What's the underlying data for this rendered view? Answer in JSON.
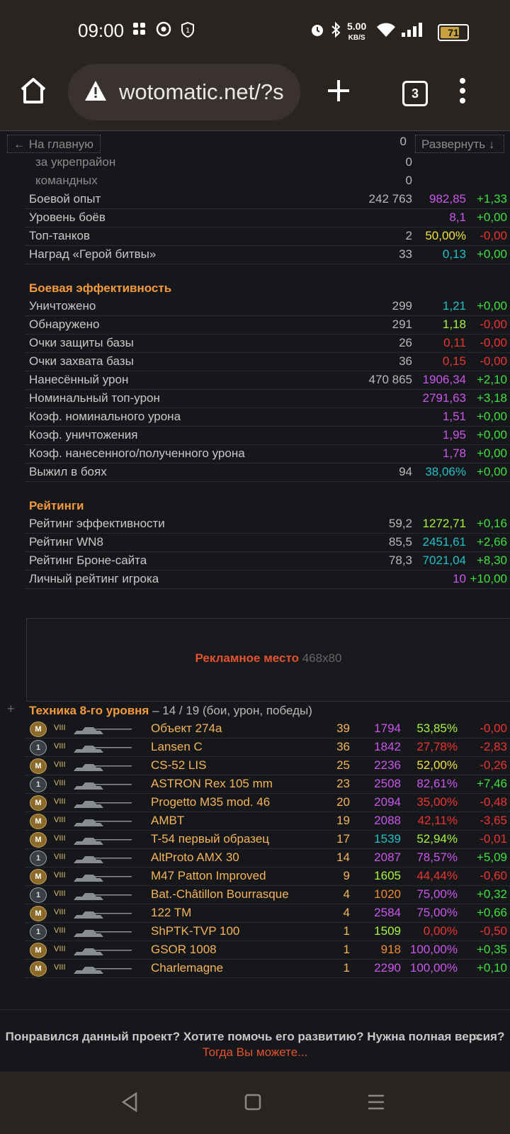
{
  "status_bar": {
    "time": "09:00",
    "net_speed": "5.00",
    "net_unit": "KB/S",
    "battery": "71"
  },
  "browser": {
    "url": "wotomatic.net/?s",
    "tab_count": "3"
  },
  "nav": {
    "home_link": "← На главную",
    "expand": "Развернуть ↓",
    "home_link_value": "0"
  },
  "colors": {
    "orange": "#f59a3c",
    "green": "#3fe03f",
    "red": "#ee3333",
    "purple": "#cc55ee",
    "teal": "#22c0c8",
    "yellow": "#f0e040",
    "lime": "#a8f040",
    "gold": "#f5b45a",
    "dark_orange": "#f08a30"
  },
  "top_rows": [
    {
      "label": "за укрепрайон",
      "v1": "0",
      "v2": "",
      "v3": "",
      "c2": "",
      "c3": "",
      "indent": true
    },
    {
      "label": "командных",
      "v1": "0",
      "v2": "",
      "v3": "",
      "c2": "",
      "c3": "",
      "indent": true
    },
    {
      "label": "Боевой опыт",
      "v1": "242 763",
      "v2": "982,85",
      "v3": "+1,33",
      "c2": "purple",
      "c3": "green"
    },
    {
      "label": "Уровень боёв",
      "v1": "",
      "v2": "8,1",
      "v3": "+0,00",
      "c2": "purple",
      "c3": "green"
    },
    {
      "label": "Топ-танков",
      "v1": "2",
      "v2": "50,00%",
      "v3": "-0,00",
      "c2": "yellow",
      "c3": "red"
    },
    {
      "label": "Наград «Герой битвы»",
      "v1": "33",
      "v2": "0,13",
      "v3": "+0,00",
      "c2": "teal",
      "c3": "green"
    }
  ],
  "section_combat": "Боевая эффективность",
  "combat_rows": [
    {
      "label": "Уничтожено",
      "v1": "299",
      "v2": "1,21",
      "v3": "+0,00",
      "c2": "teal",
      "c3": "green"
    },
    {
      "label": "Обнаружено",
      "v1": "291",
      "v2": "1,18",
      "v3": "-0,00",
      "c2": "lime",
      "c3": "red"
    },
    {
      "label": "Очки защиты базы",
      "v1": "26",
      "v2": "0,11",
      "v3": "-0,00",
      "c2": "red",
      "c3": "red"
    },
    {
      "label": "Очки захвата базы",
      "v1": "36",
      "v2": "0,15",
      "v3": "-0,00",
      "c2": "red",
      "c3": "red"
    },
    {
      "label": "Нанесённый урон",
      "v1": "470 865",
      "v2": "1906,34",
      "v3": "+2,10",
      "c2": "purple",
      "c3": "green"
    },
    {
      "label": "Номинальный топ-урон",
      "v1": "",
      "v2": "2791,63",
      "v3": "+3,18",
      "c2": "purple",
      "c3": "green"
    },
    {
      "label": "Коэф. номинального урона",
      "v1": "",
      "v2": "1,51",
      "v3": "+0,00",
      "c2": "purple",
      "c3": "green"
    },
    {
      "label": "Коэф. уничтожения",
      "v1": "",
      "v2": "1,95",
      "v3": "+0,00",
      "c2": "purple",
      "c3": "green"
    },
    {
      "label": "Коэф. нанесенного/полученного урона",
      "v1": "",
      "v2": "1,78",
      "v3": "+0,00",
      "c2": "purple",
      "c3": "green"
    },
    {
      "label": "Выжил в боях",
      "v1": "94",
      "v2": "38,06%",
      "v3": "+0,00",
      "c2": "teal",
      "c3": "green"
    }
  ],
  "section_ratings": "Рейтинги",
  "rating_rows": [
    {
      "label": "Рейтинг эффективности",
      "v1": "59,2",
      "v2": "1272,71",
      "v3": "+0,16",
      "c2": "lime",
      "c3": "green"
    },
    {
      "label": "Рейтинг WN8",
      "v1": "85,5",
      "v2": "2451,61",
      "v3": "+2,66",
      "c2": "teal",
      "c3": "green"
    },
    {
      "label": "Рейтинг Броне-сайта",
      "v1": "78,3",
      "v2": "7021,04",
      "v3": "+8,30",
      "c2": "teal",
      "c3": "green"
    },
    {
      "label": "Личный рейтинг игрока",
      "v1": "",
      "v2": "10",
      "v3": "+10,00",
      "c2": "purple",
      "c3": "green"
    }
  ],
  "ad": {
    "title": "Рекламное место",
    "size": "468x80"
  },
  "tanks_section": {
    "title": "Техника 8-го уровня",
    "subtitle": "– 14 / 19 (бои, урон, победы)",
    "expand": "+"
  },
  "tanks": [
    {
      "medal": "M",
      "tier": "VIII",
      "name": "Объект 274а",
      "battles": "39",
      "damage": "1794",
      "dc": "purple",
      "winrate": "53,85%",
      "wc": "lime",
      "diff": "-0,00",
      "fc": "red"
    },
    {
      "medal": "1",
      "tier": "VIII",
      "name": "Lansen C",
      "battles": "36",
      "damage": "1842",
      "dc": "purple",
      "winrate": "27,78%",
      "wc": "red",
      "diff": "-2,83",
      "fc": "red"
    },
    {
      "medal": "M",
      "tier": "VIII",
      "name": "CS-52 LIS",
      "battles": "25",
      "damage": "2236",
      "dc": "purple",
      "winrate": "52,00%",
      "wc": "yellow",
      "diff": "-0,26",
      "fc": "red"
    },
    {
      "medal": "1",
      "tier": "VIII",
      "name": "ASTRON Rex 105 mm",
      "battles": "23",
      "damage": "2508",
      "dc": "purple",
      "winrate": "82,61%",
      "wc": "purple",
      "diff": "+7,46",
      "fc": "green"
    },
    {
      "medal": "M",
      "tier": "VIII",
      "name": "Progetto M35 mod. 46",
      "battles": "20",
      "damage": "2094",
      "dc": "purple",
      "winrate": "35,00%",
      "wc": "red",
      "diff": "-0,48",
      "fc": "red"
    },
    {
      "medal": "M",
      "tier": "VIII",
      "name": "AMBT",
      "battles": "19",
      "damage": "2088",
      "dc": "purple",
      "winrate": "42,11%",
      "wc": "red",
      "diff": "-3,65",
      "fc": "red"
    },
    {
      "medal": "M",
      "tier": "VIII",
      "name": "T-54 первый образец",
      "battles": "17",
      "damage": "1539",
      "dc": "teal",
      "winrate": "52,94%",
      "wc": "lime",
      "diff": "-0,01",
      "fc": "red"
    },
    {
      "medal": "1",
      "tier": "VIII",
      "name": "AltProto AMX 30",
      "battles": "14",
      "damage": "2087",
      "dc": "purple",
      "winrate": "78,57%",
      "wc": "purple",
      "diff": "+5,09",
      "fc": "green"
    },
    {
      "medal": "M",
      "tier": "VIII",
      "name": "M47 Patton Improved",
      "battles": "9",
      "damage": "1605",
      "dc": "lime",
      "winrate": "44,44%",
      "wc": "red",
      "diff": "-0,60",
      "fc": "red"
    },
    {
      "medal": "1",
      "tier": "VIII",
      "name": "Bat.-Châtillon Bourrasque",
      "battles": "4",
      "damage": "1020",
      "dc": "dark_orange",
      "winrate": "75,00%",
      "wc": "purple",
      "diff": "+0,32",
      "fc": "green"
    },
    {
      "medal": "M",
      "tier": "VIII",
      "name": "122 TM",
      "battles": "4",
      "damage": "2584",
      "dc": "purple",
      "winrate": "75,00%",
      "wc": "purple",
      "diff": "+0,66",
      "fc": "green"
    },
    {
      "medal": "1",
      "tier": "VIII",
      "name": "ShPTK-TVP 100",
      "battles": "1",
      "damage": "1509",
      "dc": "lime",
      "winrate": "0,00%",
      "wc": "red",
      "diff": "-0,50",
      "fc": "red"
    },
    {
      "medal": "M",
      "tier": "VIII",
      "name": "GSOR 1008",
      "battles": "1",
      "damage": "918",
      "dc": "dark_orange",
      "winrate": "100,00%",
      "wc": "purple",
      "diff": "+0,35",
      "fc": "green"
    },
    {
      "medal": "M",
      "tier": "VIII",
      "name": "Charlemagne",
      "battles": "1",
      "damage": "2290",
      "dc": "purple",
      "winrate": "100,00%",
      "wc": "purple",
      "diff": "+0,10",
      "fc": "green"
    }
  ],
  "banner": {
    "question": "Понравился данный проект? Хотите помочь его развитию? Нужна полная версия?",
    "link": "Тогда Вы можете...",
    "close": "×"
  }
}
